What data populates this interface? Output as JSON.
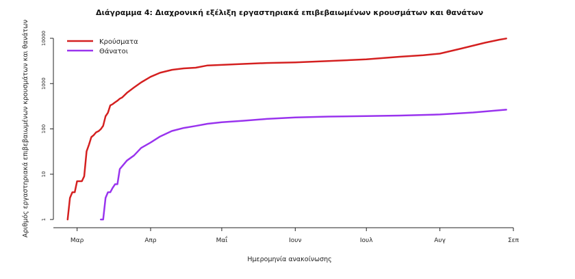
{
  "chart_data": {
    "type": "line",
    "title": "Διάγραμμα 4: Διαχρονική εξέλιξη εργαστηριακά επιβεβαιωμένων κρουσμάτων και θανάτων",
    "xlabel": "Ημερομηνία ανακοίνωσης",
    "ylabel": "Αριθμός εργαστηριακά επιβεβαιωμένων κρουσμάτων και θανάτων",
    "y_scale": "log",
    "ylim": [
      1,
      10000
    ],
    "xlim": [
      "2020-02-20",
      "2020-09-01"
    ],
    "x_ticks": [
      {
        "date": "2020-03-01",
        "label": "Μαρ"
      },
      {
        "date": "2020-04-01",
        "label": "Απρ"
      },
      {
        "date": "2020-05-01",
        "label": "Μαΐ"
      },
      {
        "date": "2020-06-01",
        "label": "Ιουν"
      },
      {
        "date": "2020-07-01",
        "label": "Ιουλ"
      },
      {
        "date": "2020-08-01",
        "label": "Αυγ"
      },
      {
        "date": "2020-09-01",
        "label": "Σεπ"
      }
    ],
    "y_ticks": [
      {
        "value": 1,
        "label": "1"
      },
      {
        "value": 10,
        "label": "10"
      },
      {
        "value": 100,
        "label": "100"
      },
      {
        "value": 1000,
        "label": "1000"
      },
      {
        "value": 10000,
        "label": "10000"
      }
    ],
    "grid": false,
    "legend_position": "top-left",
    "series": [
      {
        "name": "Κρούσματα",
        "color": "#d42020",
        "points": [
          [
            "2020-02-26",
            1
          ],
          [
            "2020-02-27",
            3
          ],
          [
            "2020-02-28",
            4
          ],
          [
            "2020-02-29",
            4
          ],
          [
            "2020-03-01",
            7
          ],
          [
            "2020-03-02",
            7
          ],
          [
            "2020-03-03",
            7
          ],
          [
            "2020-03-04",
            9
          ],
          [
            "2020-03-05",
            32
          ],
          [
            "2020-03-06",
            45
          ],
          [
            "2020-03-07",
            66
          ],
          [
            "2020-03-08",
            73
          ],
          [
            "2020-03-09",
            84
          ],
          [
            "2020-03-10",
            89
          ],
          [
            "2020-03-11",
            99
          ],
          [
            "2020-03-12",
            117
          ],
          [
            "2020-03-13",
            190
          ],
          [
            "2020-03-14",
            228
          ],
          [
            "2020-03-15",
            331
          ],
          [
            "2020-03-16",
            352
          ],
          [
            "2020-03-17",
            387
          ],
          [
            "2020-03-18",
            418
          ],
          [
            "2020-03-19",
            464
          ],
          [
            "2020-03-20",
            495
          ],
          [
            "2020-03-22",
            624
          ],
          [
            "2020-03-25",
            821
          ],
          [
            "2020-03-28",
            1061
          ],
          [
            "2020-04-01",
            1415
          ],
          [
            "2020-04-05",
            1735
          ],
          [
            "2020-04-10",
            2011
          ],
          [
            "2020-04-15",
            2170
          ],
          [
            "2020-04-20",
            2245
          ],
          [
            "2020-04-25",
            2517
          ],
          [
            "2020-05-01",
            2591
          ],
          [
            "2020-05-10",
            2716
          ],
          [
            "2020-05-20",
            2850
          ],
          [
            "2020-06-01",
            2937
          ],
          [
            "2020-06-15",
            3148
          ],
          [
            "2020-07-01",
            3432
          ],
          [
            "2020-07-15",
            3910
          ],
          [
            "2020-07-25",
            4227
          ],
          [
            "2020-08-01",
            4587
          ],
          [
            "2020-08-10",
            5942
          ],
          [
            "2020-08-20",
            7976
          ],
          [
            "2020-08-26",
            9280
          ],
          [
            "2020-08-29",
            9900
          ]
        ]
      },
      {
        "name": "Θάνατοι",
        "color": "#9933ee",
        "points": [
          [
            "2020-03-11",
            1
          ],
          [
            "2020-03-12",
            1
          ],
          [
            "2020-03-13",
            3
          ],
          [
            "2020-03-14",
            4
          ],
          [
            "2020-03-15",
            4
          ],
          [
            "2020-03-16",
            5
          ],
          [
            "2020-03-17",
            6
          ],
          [
            "2020-03-18",
            6
          ],
          [
            "2020-03-19",
            13
          ],
          [
            "2020-03-20",
            15
          ],
          [
            "2020-03-22",
            20
          ],
          [
            "2020-03-25",
            26
          ],
          [
            "2020-03-28",
            38
          ],
          [
            "2020-04-01",
            50
          ],
          [
            "2020-04-05",
            68
          ],
          [
            "2020-04-10",
            90
          ],
          [
            "2020-04-15",
            105
          ],
          [
            "2020-04-20",
            116
          ],
          [
            "2020-04-25",
            130
          ],
          [
            "2020-05-01",
            140
          ],
          [
            "2020-05-10",
            151
          ],
          [
            "2020-05-20",
            166
          ],
          [
            "2020-06-01",
            179
          ],
          [
            "2020-06-15",
            187
          ],
          [
            "2020-07-01",
            192
          ],
          [
            "2020-07-15",
            197
          ],
          [
            "2020-08-01",
            208
          ],
          [
            "2020-08-15",
            230
          ],
          [
            "2020-08-29",
            266
          ]
        ]
      }
    ]
  }
}
